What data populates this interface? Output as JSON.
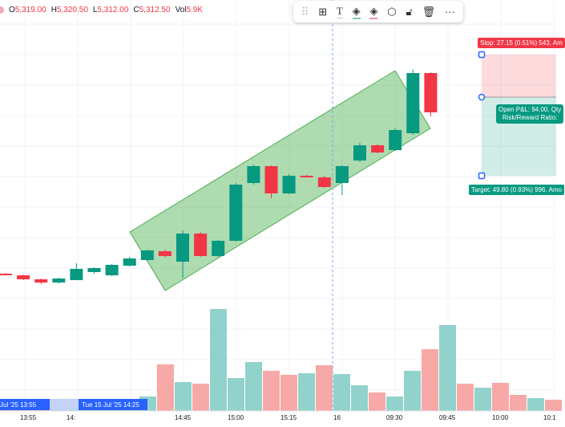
{
  "legend": {
    "o_label": "O",
    "o": "5,319.00",
    "h_label": "H",
    "h": "5,320.50",
    "l_label": "L",
    "l": "5,312.00",
    "c_label": "C",
    "c": "5,312.50",
    "vol_label": "Vol",
    "vol": "5.9K"
  },
  "toolbar": {
    "icons": [
      "drag-handle-icon",
      "templates-icon",
      "text-icon",
      "fill-color-icon",
      "border-color-icon",
      "settings-icon",
      "unlock-icon",
      "trash-icon",
      "more-icon"
    ]
  },
  "position": {
    "stop": "Stop: 27.15 (0.51%) 543, Am",
    "pnl": "Open P&L: 94.00, Qty",
    "rr": "Risk/Reward Ratio:",
    "target": "Target: 49.80 (0.93%) 996, Amo"
  },
  "xaxis": {
    "labels": [
      "13:55",
      "14:",
      "14:45",
      "15:00",
      "15:15",
      "16",
      "09:30",
      "09:45",
      "10:00",
      "10:1"
    ],
    "left_tag": "Jul '25  13:55",
    "cursor_tag": "Tue 15 Jul '25  14:25"
  },
  "colors": {
    "up": "#089981",
    "down": "#f23645",
    "vol_up": "#92d2cc",
    "vol_down": "#f7a9a7"
  },
  "candles": [
    [
      341,
      341,
      340,
      342
    ],
    [
      343,
      348,
      342,
      349
    ],
    [
      348,
      352,
      347,
      354
    ],
    [
      352,
      347,
      346,
      353
    ],
    [
      349,
      335,
      328,
      349
    ],
    [
      339,
      334,
      333,
      341
    ],
    [
      343,
      330,
      329,
      344
    ],
    [
      331,
      322,
      320,
      332
    ],
    [
      324,
      312,
      311,
      325
    ],
    [
      313,
      319,
      311,
      321
    ],
    [
      326,
      291,
      287,
      346
    ],
    [
      291,
      319,
      289,
      320
    ],
    [
      319,
      300,
      299,
      320
    ],
    [
      300,
      230,
      228,
      301
    ],
    [
      228,
      207,
      205,
      230
    ],
    [
      207,
      241,
      206,
      247
    ],
    [
      241,
      219,
      217,
      242
    ],
    [
      219,
      219,
      218,
      220
    ],
    [
      221,
      233,
      219,
      234
    ],
    [
      228,
      207,
      206,
      243
    ],
    [
      200,
      181,
      178,
      202
    ],
    [
      181,
      190,
      180,
      191
    ],
    [
      187,
      162,
      160,
      188
    ],
    [
      166,
      91,
      87,
      168
    ],
    [
      91,
      140,
      90,
      145
    ]
  ],
  "volumes": [
    [
      4,
      0
    ],
    [
      4,
      0
    ],
    [
      3,
      0
    ],
    [
      9,
      1
    ],
    [
      7,
      1
    ],
    [
      4,
      1
    ],
    [
      4,
      1
    ],
    [
      12,
      1
    ],
    [
      18,
      1
    ],
    [
      58,
      0
    ],
    [
      36,
      1
    ],
    [
      34,
      0
    ],
    [
      127,
      1
    ],
    [
      41,
      1
    ],
    [
      61,
      1
    ],
    [
      50,
      0
    ],
    [
      45,
      0
    ],
    [
      47,
      1
    ],
    [
      57,
      0
    ],
    [
      46,
      1
    ],
    [
      32,
      1
    ],
    [
      23,
      0
    ],
    [
      18,
      1
    ],
    [
      50,
      1
    ],
    [
      77,
      0
    ],
    [
      107,
      1
    ],
    [
      34,
      0
    ],
    [
      29,
      1
    ],
    [
      35,
      0
    ],
    [
      20,
      0
    ],
    [
      16,
      1
    ],
    [
      14,
      0
    ]
  ]
}
